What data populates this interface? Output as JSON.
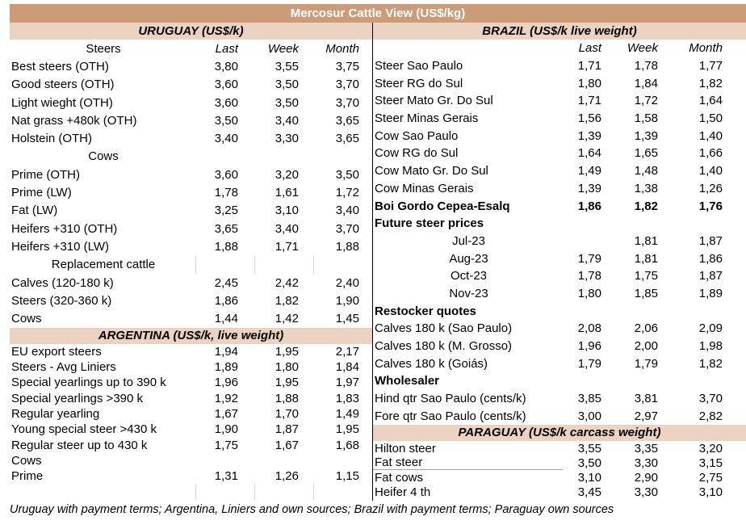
{
  "title": "Mercosur Cattle View (US$/kg)",
  "footer": "Uruguay with payment terms; Argentina, Liniers and own sources; Brazil with payment terms; Paraguay own sources",
  "colors": {
    "banner_bg": "#cc9c78",
    "band_bg": "#ecd2c0",
    "banner_text": "#ffffff",
    "text": "#000000",
    "grid_line": "#d9d9d9"
  },
  "chart_data": [
    {
      "type": "table",
      "panel": "left",
      "title": "URUGUAY (US$/k)",
      "row_label_header": "Steers",
      "columns": [
        "Last",
        "Week",
        "Month"
      ],
      "rows": [
        {
          "label": "Best steers (OTH)",
          "values": [
            "3,80",
            "3,55",
            "3,75"
          ]
        },
        {
          "label": "Good steers (OTH)",
          "values": [
            "3,60",
            "3,50",
            "3,70"
          ]
        },
        {
          "label": "Light wieght (OTH)",
          "values": [
            "3,60",
            "3,50",
            "3,70"
          ]
        },
        {
          "label": "Nat grass +480k (OTH)",
          "values": [
            "3,50",
            "3,40",
            "3,65"
          ]
        },
        {
          "label": "Holstein (OTH)",
          "values": [
            "3,40",
            "3,30",
            "3,65"
          ]
        },
        {
          "label": "Cows",
          "values": [
            "",
            "",
            ""
          ],
          "style": "subheader"
        },
        {
          "label": "Prime (OTH)",
          "values": [
            "3,60",
            "3,20",
            "3,50"
          ]
        },
        {
          "label": "Prime (LW)",
          "values": [
            "1,78",
            "1,61",
            "1,72"
          ]
        },
        {
          "label": "Fat (LW)",
          "values": [
            "3,25",
            "3,10",
            "3,40"
          ]
        },
        {
          "label": "Heifers +310 (OTH)",
          "values": [
            "3,65",
            "3,40",
            "3,70"
          ]
        },
        {
          "label": "Heifers +310 (LW)",
          "values": [
            "1,88",
            "1,71",
            "1,88"
          ]
        },
        {
          "label": "Replacement cattle",
          "values": [
            "",
            "",
            ""
          ],
          "style": "subheader",
          "grid": true
        },
        {
          "label": "Calves (120-180 k)",
          "values": [
            "2,45",
            "2,42",
            "2,40"
          ]
        },
        {
          "label": "Steers (320-360 k)",
          "values": [
            "1,86",
            "1,82",
            "1,90"
          ]
        },
        {
          "label": "Cows",
          "values": [
            "1,44",
            "1,42",
            "1,45"
          ]
        }
      ]
    },
    {
      "type": "table",
      "panel": "left",
      "title": "ARGENTINA (US$/k, live weight)",
      "columns": [
        "Last",
        "Week",
        "Month"
      ],
      "rows": [
        {
          "label": "EU export steers",
          "values": [
            "1,94",
            "1,95",
            "2,17"
          ]
        },
        {
          "label": "Steers - Avg Liniers",
          "values": [
            "1,89",
            "1,80",
            "1,84"
          ]
        },
        {
          "label": "Special yearlings up to 390 k",
          "values": [
            "1,96",
            "1,95",
            "1,97"
          ]
        },
        {
          "label": "Special yearlings >390 k",
          "values": [
            "1,92",
            "1,88",
            "1,83"
          ]
        },
        {
          "label": "Regular yearling",
          "values": [
            "1,67",
            "1,70",
            "1,49"
          ]
        },
        {
          "label": "Young special steer >430 k",
          "values": [
            "1,90",
            "1,87",
            "1,95"
          ]
        },
        {
          "label": "Regular steer up to 430 k",
          "values": [
            "1,75",
            "1,67",
            "1,68"
          ]
        },
        {
          "label": "Cows",
          "values": [
            "",
            "",
            ""
          ]
        },
        {
          "label": "Prime",
          "values": [
            "1,31",
            "1,26",
            "1,15"
          ]
        },
        {
          "label": "",
          "values": [
            "",
            "",
            ""
          ],
          "grid": true
        }
      ]
    },
    {
      "type": "table",
      "panel": "right",
      "title": "BRAZIL  (US$/k live weight)",
      "row_label_header": "",
      "columns": [
        "Last",
        "Week",
        "Month"
      ],
      "rows": [
        {
          "label": "Steer Sao Paulo",
          "values": [
            "1,71",
            "1,78",
            "1,77"
          ]
        },
        {
          "label": "Steer RG do Sul",
          "values": [
            "1,80",
            "1,84",
            "1,82"
          ]
        },
        {
          "label": "Steer Mato Gr. Do Sul",
          "values": [
            "1,71",
            "1,72",
            "1,64"
          ]
        },
        {
          "label": "Steer Minas Gerais",
          "values": [
            "1,56",
            "1,58",
            "1,50"
          ]
        },
        {
          "label": "Cow Sao Paulo",
          "values": [
            "1,39",
            "1,39",
            "1,40"
          ]
        },
        {
          "label": "Cow RG do Sul",
          "values": [
            "1,64",
            "1,65",
            "1,66"
          ]
        },
        {
          "label": "Cow Mato Gr. Do Sul",
          "values": [
            "1,49",
            "1,48",
            "1,40"
          ]
        },
        {
          "label": "Cow Minas Gerais",
          "values": [
            "1,39",
            "1,38",
            "1,26"
          ]
        },
        {
          "label": "Boi Gordo Cepea-Esalq",
          "values": [
            "1,86",
            "1,82",
            "1,76"
          ],
          "style": "bold"
        },
        {
          "label": "Future steer prices",
          "values": [
            "",
            "",
            ""
          ],
          "style": "group"
        },
        {
          "label": "Jul-23",
          "values": [
            "",
            "1,81",
            "1,87"
          ],
          "style": "month"
        },
        {
          "label": "Aug-23",
          "values": [
            "1,79",
            "1,81",
            "1,86"
          ],
          "style": "month"
        },
        {
          "label": "Oct-23",
          "values": [
            "1,78",
            "1,75",
            "1,87"
          ],
          "style": "month"
        },
        {
          "label": "Nov-23",
          "values": [
            "1,80",
            "1,85",
            "1,89"
          ],
          "style": "month"
        },
        {
          "label": "Restocker quotes",
          "values": [
            "",
            "",
            ""
          ],
          "style": "group"
        },
        {
          "label": "Calves 180 k (Sao Paulo)",
          "values": [
            "2,08",
            "2,06",
            "2,09"
          ]
        },
        {
          "label": "Calves 180 k (M. Grosso)",
          "values": [
            "1,96",
            "2,00",
            "1,98"
          ]
        },
        {
          "label": "Calves 180 k (Goiás)",
          "values": [
            "1,79",
            "1,79",
            "1,82"
          ]
        },
        {
          "label": "Wholesaler",
          "values": [
            "",
            "",
            ""
          ],
          "style": "group"
        },
        {
          "label": "Hind qtr Sao Paulo (cents/k)",
          "values": [
            "3,85",
            "3,81",
            "3,70"
          ]
        },
        {
          "label": "Fore qtr Sao Paulo (cents/k)",
          "values": [
            "3,00",
            "2,97",
            "2,82"
          ]
        }
      ]
    },
    {
      "type": "table",
      "panel": "right",
      "title": "PARAGUAY  (US$/k carcass weight)",
      "columns": [
        "Last",
        "Week",
        "Month"
      ],
      "rows": [
        {
          "label": "Hilton steer",
          "values": [
            "3,55",
            "3,35",
            "3,20"
          ]
        },
        {
          "label": "Fat steer",
          "values": [
            "3,50",
            "3,30",
            "3,15"
          ],
          "underline": true
        },
        {
          "label": "Fat cows",
          "values": [
            "3,10",
            "2,90",
            "2,75"
          ]
        },
        {
          "label": "Heifer 4 th",
          "values": [
            "3,45",
            "3,30",
            "3,10"
          ]
        }
      ]
    }
  ]
}
